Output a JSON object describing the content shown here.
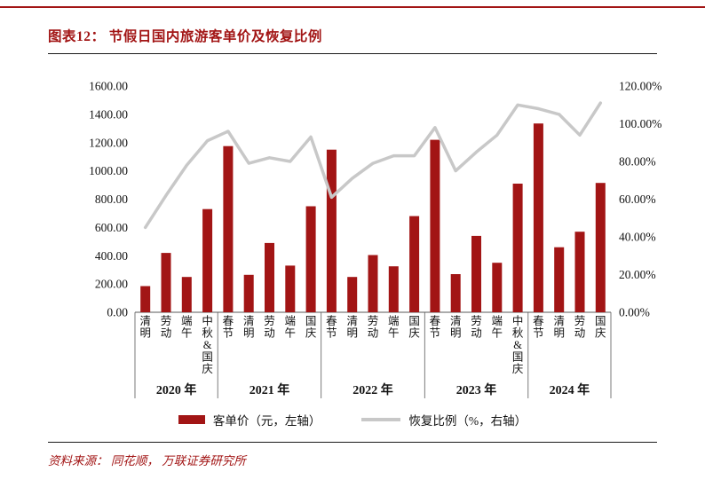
{
  "header": {
    "title": "图表12： 节假日国内旅游客单价及恢复比例"
  },
  "legend": {
    "bars_label": "客单价（元，左轴）",
    "line_label": "恢复比例（%，右轴）"
  },
  "footer": {
    "source": "资料来源： 同花顺， 万联证券研究所"
  },
  "colors": {
    "accent_red": "#A21515",
    "line_gray": "#C8C8C8",
    "axis_dark": "#595959",
    "text_black": "#111111"
  },
  "chart_data": {
    "type": "combo-bar-line",
    "title": "节假日国内旅游客单价及恢复比例",
    "legend_position": "bottom",
    "grid": false,
    "series": [
      {
        "name": "客单价（元，左轴）",
        "type": "bar",
        "axis": "left"
      },
      {
        "name": "恢复比例（%，右轴）",
        "type": "line",
        "axis": "right"
      }
    ],
    "left_axis": {
      "min": 0,
      "max": 1600,
      "step": 200,
      "tick_labels": [
        "0.00",
        "200.00",
        "400.00",
        "600.00",
        "800.00",
        "1000.00",
        "1200.00",
        "1400.00",
        "1600.00"
      ]
    },
    "right_axis": {
      "min": 0,
      "max": 120,
      "step": 20,
      "tick_labels": [
        "0.00%",
        "20.00%",
        "40.00%",
        "60.00%",
        "80.00%",
        "100.00%",
        "120.00%"
      ]
    },
    "groups": [
      {
        "year": "2020 年",
        "categories": [
          "清明",
          "劳动",
          "端午",
          "中秋&国庆"
        ],
        "bar_values": [
          185,
          420,
          250,
          730
        ],
        "line_values": [
          45,
          62,
          78,
          91
        ]
      },
      {
        "year": "2021 年",
        "categories": [
          "春节",
          "清明",
          "劳动",
          "端午",
          "国庆"
        ],
        "bar_values": [
          1175,
          265,
          490,
          330,
          750
        ],
        "line_values": [
          96,
          79,
          82,
          80,
          93
        ]
      },
      {
        "year": "2022 年",
        "categories": [
          "春节",
          "清明",
          "劳动",
          "端午",
          "国庆"
        ],
        "bar_values": [
          1150,
          250,
          405,
          325,
          680
        ],
        "line_values": [
          61,
          71,
          79,
          83,
          83
        ]
      },
      {
        "year": "2023 年",
        "categories": [
          "春节",
          "清明",
          "劳动",
          "端午",
          "中秋&国庆"
        ],
        "bar_values": [
          1220,
          270,
          540,
          350,
          910
        ],
        "line_values": [
          98,
          75,
          85,
          94,
          110
        ]
      },
      {
        "year": "2024 年",
        "categories": [
          "春节",
          "清明",
          "劳动",
          "国庆"
        ],
        "bar_values": [
          1335,
          460,
          570,
          915
        ],
        "line_values": [
          108,
          105,
          94,
          111
        ]
      }
    ]
  }
}
